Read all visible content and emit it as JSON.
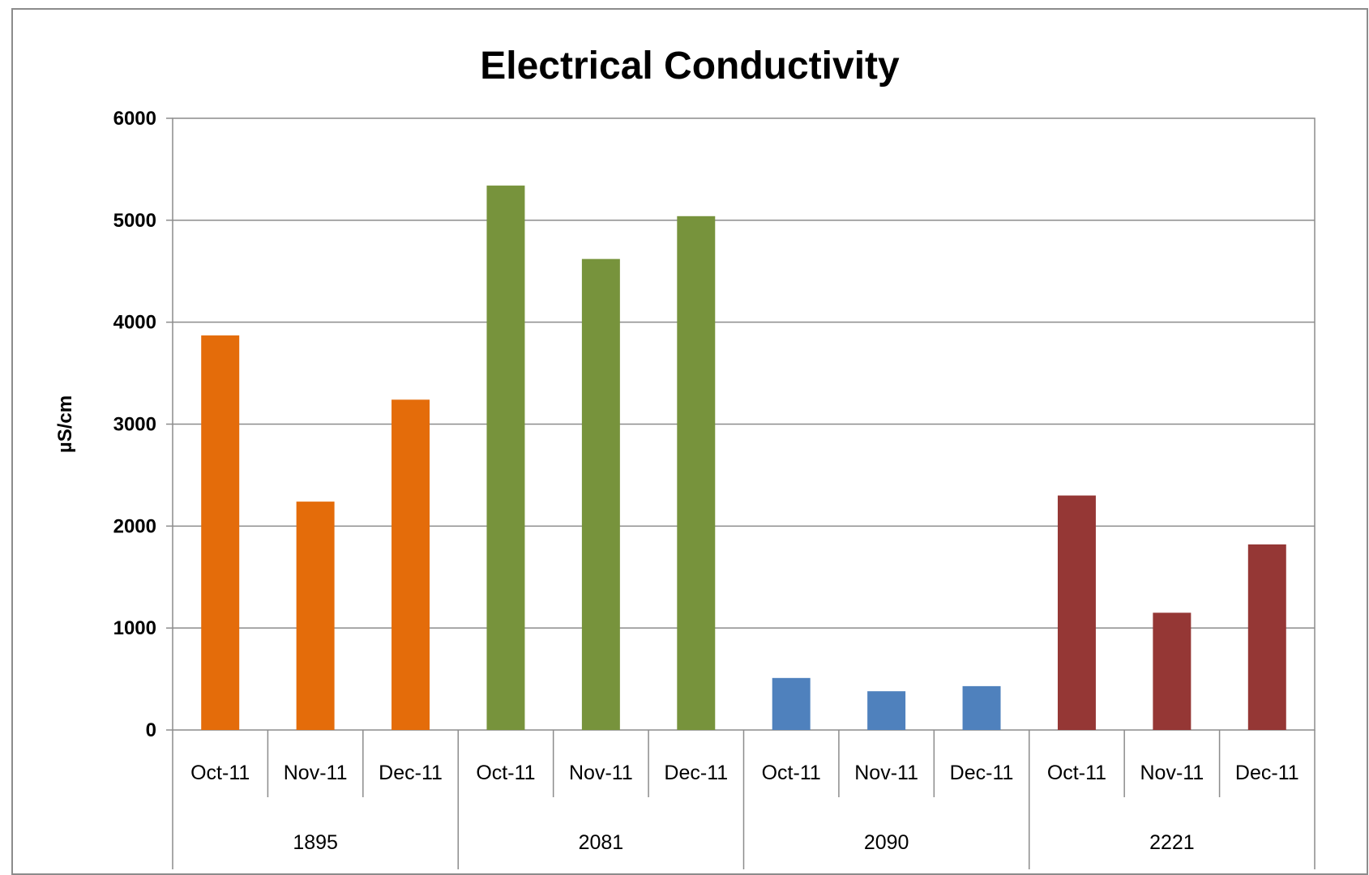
{
  "chart_data": {
    "type": "bar",
    "title": "Electrical Conductivity",
    "xlabel": "",
    "ylabel": "µS/cm",
    "ylim": [
      0,
      6000
    ],
    "yticks": [
      "0",
      "1000",
      "2000",
      "3000",
      "4000",
      "5000",
      "6000"
    ],
    "grid": true,
    "groups": [
      {
        "name": "1895",
        "color": "#E46C0A",
        "categories": [
          "Oct-11",
          "Nov-11",
          "Dec-11"
        ],
        "values": [
          3870,
          2240,
          3240
        ]
      },
      {
        "name": "2081",
        "color": "#77933C",
        "categories": [
          "Oct-11",
          "Nov-11",
          "Dec-11"
        ],
        "values": [
          5340,
          4620,
          5040
        ]
      },
      {
        "name": "2090",
        "color": "#4F81BD",
        "categories": [
          "Oct-11",
          "Nov-11",
          "Dec-11"
        ],
        "values": [
          510,
          380,
          430
        ]
      },
      {
        "name": "2221",
        "color": "#953735",
        "categories": [
          "Oct-11",
          "Nov-11",
          "Dec-11"
        ],
        "values": [
          2300,
          1150,
          1820
        ]
      }
    ]
  }
}
